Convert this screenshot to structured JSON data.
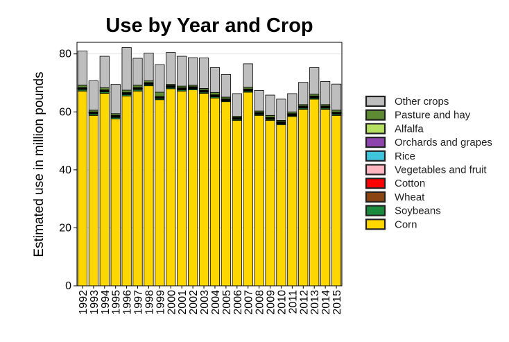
{
  "chart_data": {
    "type": "bar",
    "stacked": true,
    "title": "Use by Year and Crop",
    "xlabel": "",
    "ylabel": "Estimated use in million pounds",
    "ylim": [
      0,
      84
    ],
    "yticks": [
      0,
      20,
      40,
      60,
      80
    ],
    "grid": "horizontal",
    "legend_position": "right",
    "categories": [
      "1992",
      "1993",
      "1994",
      "1995",
      "1996",
      "1997",
      "1998",
      "1999",
      "2000",
      "2001",
      "2002",
      "2003",
      "2004",
      "2005",
      "2006",
      "2007",
      "2008",
      "2009",
      "2010",
      "2011",
      "2012",
      "2013",
      "2014",
      "2015"
    ],
    "series": [
      {
        "name": "Corn",
        "color": "#FFD700",
        "values": [
          67.2,
          58.8,
          66.4,
          57.6,
          65.5,
          67.2,
          69.0,
          64.2,
          68.0,
          67.2,
          67.6,
          66.4,
          64.8,
          63.5,
          57.1,
          66.8,
          58.8,
          57.1,
          55.6,
          58.4,
          60.9,
          64.4,
          60.9,
          58.8
        ]
      },
      {
        "name": "Soybeans",
        "color": "#1B8A3C",
        "values": [
          0.5,
          0.5,
          0.5,
          0.5,
          0.5,
          0.5,
          0.4,
          0.4,
          0.4,
          0.4,
          0.4,
          0.4,
          0.4,
          0.3,
          0.3,
          0.4,
          0.3,
          0.3,
          0.3,
          0.3,
          0.4,
          0.4,
          0.4,
          0.4
        ]
      },
      {
        "name": "Wheat",
        "color": "#8B4513",
        "values": [
          0.2,
          0.2,
          0.2,
          0.2,
          0.2,
          0.2,
          0.2,
          0.2,
          0.2,
          0.2,
          0.2,
          0.2,
          0.2,
          0.2,
          0.2,
          0.2,
          0.2,
          0.2,
          0.2,
          0.2,
          0.2,
          0.2,
          0.2,
          0.2
        ]
      },
      {
        "name": "Cotton",
        "color": "#FF0000",
        "values": [
          0.1,
          0.1,
          0.1,
          0.1,
          0.1,
          0.1,
          0.1,
          0.1,
          0.1,
          0.1,
          0.1,
          0.1,
          0.1,
          0.1,
          0.1,
          0.1,
          0.1,
          0.1,
          0.1,
          0.1,
          0.1,
          0.1,
          0.1,
          0.1
        ]
      },
      {
        "name": "Vegetables and fruit",
        "color": "#FFB6C1",
        "values": [
          0.1,
          0.1,
          0.1,
          0.1,
          0.1,
          0.1,
          0.1,
          0.1,
          0.1,
          0.1,
          0.1,
          0.1,
          0.1,
          0.1,
          0.1,
          0.1,
          0.1,
          0.1,
          0.1,
          0.1,
          0.1,
          0.1,
          0.1,
          0.1
        ]
      },
      {
        "name": "Rice",
        "color": "#40C4DD",
        "values": [
          0.05,
          0.05,
          0.05,
          0.05,
          0.05,
          0.05,
          0.05,
          0.05,
          0.05,
          0.05,
          0.05,
          0.05,
          0.05,
          0.05,
          0.05,
          0.05,
          0.05,
          0.05,
          0.05,
          0.05,
          0.05,
          0.05,
          0.05,
          0.05
        ]
      },
      {
        "name": "Orchards and grapes",
        "color": "#8E44AD",
        "values": [
          0.05,
          0.05,
          0.05,
          0.05,
          0.05,
          0.05,
          0.05,
          0.05,
          0.05,
          0.05,
          0.05,
          0.05,
          0.05,
          0.05,
          0.05,
          0.05,
          0.05,
          0.05,
          0.05,
          0.05,
          0.05,
          0.05,
          0.05,
          0.05
        ]
      },
      {
        "name": "Alfalfa",
        "color": "#B5E061",
        "values": [
          0.2,
          0.2,
          0.2,
          0.2,
          0.2,
          0.2,
          0.2,
          0.2,
          0.2,
          0.2,
          0.2,
          0.2,
          0.2,
          0.2,
          0.2,
          0.2,
          0.2,
          0.2,
          0.2,
          0.2,
          0.2,
          0.2,
          0.2,
          0.2
        ]
      },
      {
        "name": "Pasture and hay",
        "color": "#5E8A33",
        "values": [
          0.8,
          0.6,
          0.7,
          0.6,
          0.8,
          0.8,
          0.6,
          1.5,
          0.4,
          0.6,
          0.5,
          0.6,
          0.8,
          0.6,
          0.4,
          0.6,
          0.5,
          0.7,
          0.5,
          0.6,
          0.5,
          0.6,
          0.5,
          0.7
        ]
      },
      {
        "name": "Other crops",
        "color": "#BEBEBE",
        "values": [
          11.8,
          10.1,
          10.9,
          10.1,
          14.7,
          9.3,
          9.6,
          9.5,
          11.0,
          10.3,
          9.5,
          10.5,
          8.6,
          7.8,
          7.8,
          8.1,
          7.1,
          7.0,
          7.3,
          6.3,
          7.7,
          9.2,
          8.0,
          9.0
        ]
      }
    ],
    "legend_order": [
      "Other crops",
      "Pasture and hay",
      "Alfalfa",
      "Orchards and grapes",
      "Rice",
      "Vegetables and fruit",
      "Cotton",
      "Wheat",
      "Soybeans",
      "Corn"
    ]
  }
}
